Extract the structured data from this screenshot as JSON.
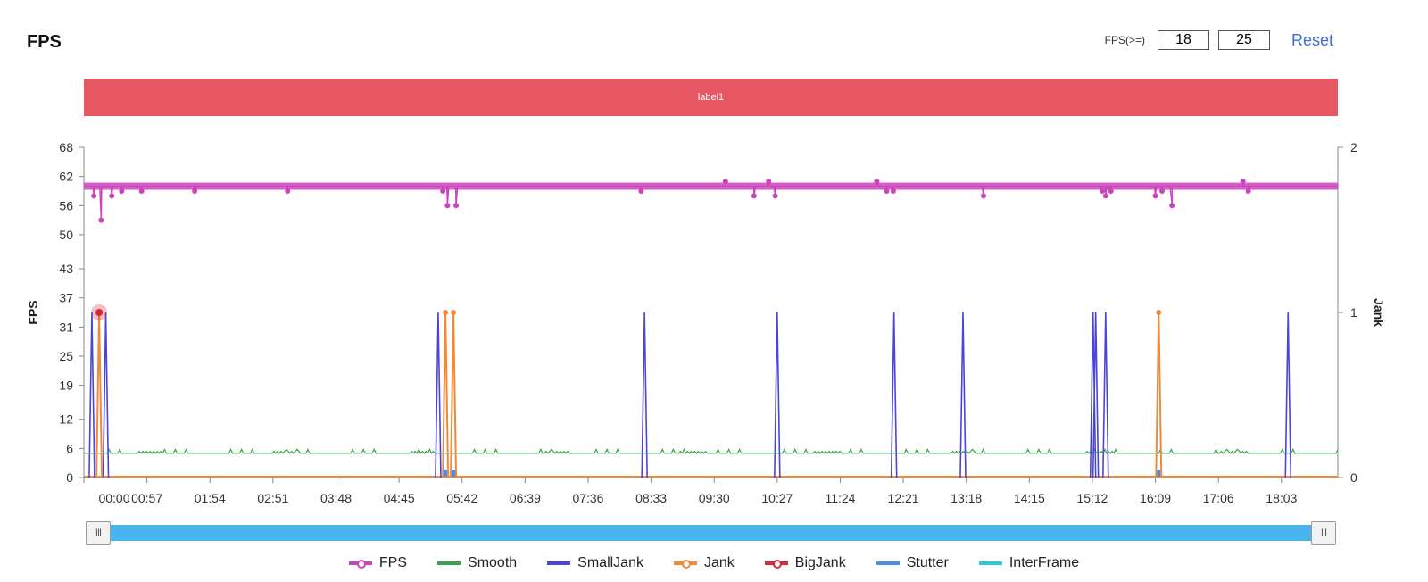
{
  "title": "FPS",
  "controls": {
    "fps_label": "FPS(>=)",
    "threshold_low": "18",
    "threshold_high": "25",
    "reset_label": "Reset"
  },
  "label_bar": {
    "text": "label1",
    "color": "#e95664"
  },
  "slider": {
    "handle_glyph": "III",
    "range_start": 0,
    "range_end": 1
  },
  "chart_data": {
    "type": "line",
    "x_ticks": [
      "00:00",
      "00:57",
      "01:54",
      "02:51",
      "03:48",
      "04:45",
      "05:42",
      "06:39",
      "07:36",
      "08:33",
      "09:30",
      "10:27",
      "11:24",
      "12:21",
      "13:18",
      "14:15",
      "15:12",
      "16:09",
      "17:06",
      "18:03"
    ],
    "x_range": [
      "00:00",
      "18:54"
    ],
    "y_left": {
      "label": "FPS",
      "ticks": [
        0,
        6,
        12,
        19,
        25,
        31,
        37,
        43,
        50,
        56,
        62,
        68
      ],
      "range": [
        0,
        68
      ]
    },
    "y_right": {
      "label": "Jank",
      "ticks": [
        0,
        1,
        2
      ],
      "range": [
        0,
        2
      ]
    },
    "series": [
      {
        "name": "FPS",
        "axis": "left",
        "color": "#cc44bb",
        "marker": "circle",
        "baseline": 60,
        "dips": [
          [
            0.15,
            58
          ],
          [
            0.26,
            53
          ],
          [
            0.42,
            58
          ],
          [
            0.57,
            59
          ],
          [
            0.87,
            59
          ],
          [
            1.67,
            59
          ],
          [
            3.07,
            59
          ],
          [
            5.41,
            59
          ],
          [
            5.48,
            56
          ],
          [
            5.61,
            56
          ],
          [
            8.4,
            59
          ],
          [
            9.67,
            61
          ],
          [
            10.1,
            58
          ],
          [
            10.32,
            61
          ],
          [
            10.42,
            58
          ],
          [
            11.95,
            61
          ],
          [
            12.1,
            59
          ],
          [
            12.2,
            59
          ],
          [
            13.56,
            58
          ],
          [
            15.35,
            59
          ],
          [
            15.4,
            58
          ],
          [
            15.48,
            59
          ],
          [
            16.15,
            58
          ],
          [
            16.25,
            59
          ],
          [
            16.4,
            56
          ],
          [
            17.47,
            61
          ],
          [
            17.55,
            59
          ]
        ]
      },
      {
        "name": "Smooth",
        "axis": "left",
        "color": "#3aa24a",
        "baseline": 5
      },
      {
        "name": "SmallJank",
        "axis": "right",
        "color": "#4a44d8",
        "spikes": [
          0.12,
          0.33,
          5.34,
          8.45,
          10.45,
          12.21,
          13.25,
          15.21,
          15.25,
          15.4,
          18.15
        ]
      },
      {
        "name": "Jank",
        "axis": "right",
        "color": "#f08a3a",
        "spikes": [
          0.23,
          5.45,
          5.57,
          16.2
        ]
      },
      {
        "name": "BigJank",
        "axis": "right",
        "color": "#d8283a",
        "points": [
          [
            0.23,
            1
          ]
        ]
      },
      {
        "name": "Stutter",
        "axis": "right",
        "color": "#4a8fe6",
        "markers": [
          5.45,
          5.57,
          16.2
        ]
      },
      {
        "name": "InterFrame",
        "axis": "right",
        "color": "#2ec8e0"
      }
    ]
  }
}
